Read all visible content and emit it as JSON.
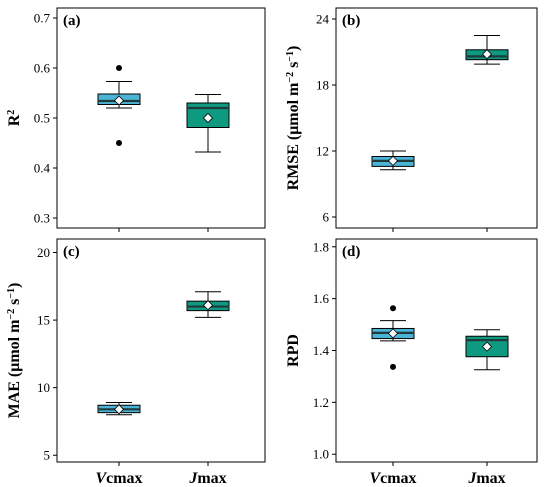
{
  "colors": {
    "vcmax": "#4bb3d6",
    "jmax": "#0e9a80",
    "median": "#1f3b3a",
    "frame": "#000000"
  },
  "x_categories": [
    {
      "italic": "V",
      "rest": "cmax"
    },
    {
      "italic": "J",
      "rest": "max"
    }
  ],
  "chart_data": [
    {
      "type": "box",
      "label": "(a)",
      "ylabel": "R",
      "ylabel_sup": "2",
      "ylim": [
        0.28,
        0.72
      ],
      "yticks": [
        "0.3",
        "0.4",
        "0.5",
        "0.6",
        "0.7"
      ],
      "categories": [
        "Vcmax",
        "Jmax"
      ],
      "boxes": [
        {
          "whisker_low": 0.52,
          "q1": 0.527,
          "median": 0.534,
          "q3": 0.548,
          "whisker_high": 0.573,
          "mean": 0.535,
          "outliers": [
            0.6,
            0.45
          ]
        },
        {
          "whisker_low": 0.432,
          "q1": 0.481,
          "median": 0.52,
          "q3": 0.53,
          "whisker_high": 0.547,
          "mean": 0.5,
          "outliers": []
        }
      ]
    },
    {
      "type": "box",
      "label": "(b)",
      "ylabel": "RMSE (μmol m",
      "ylabel_sup": "−2",
      "ylabel_mid": " s",
      "ylabel_sup2": "−1",
      "ylabel_end": ")",
      "ylim": [
        5,
        25
      ],
      "yticks": [
        "6",
        "12",
        "18",
        "24"
      ],
      "categories": [
        "Vcmax",
        "Jmax"
      ],
      "boxes": [
        {
          "whisker_low": 10.3,
          "q1": 10.6,
          "median": 11.1,
          "q3": 11.5,
          "whisker_high": 12.0,
          "mean": 11.1,
          "outliers": []
        },
        {
          "whisker_low": 19.9,
          "q1": 20.3,
          "median": 20.6,
          "q3": 21.2,
          "whisker_high": 22.5,
          "mean": 20.8,
          "outliers": []
        }
      ]
    },
    {
      "type": "box",
      "label": "(c)",
      "ylabel": "MAE (μmol m",
      "ylabel_sup": "−2",
      "ylabel_mid": " s",
      "ylabel_sup2": "−1",
      "ylabel_end": ")",
      "ylim": [
        4.5,
        21
      ],
      "yticks": [
        "5",
        "10",
        "15",
        "20"
      ],
      "categories": [
        "Vcmax",
        "Jmax"
      ],
      "boxes": [
        {
          "whisker_low": 8.0,
          "q1": 8.15,
          "median": 8.4,
          "q3": 8.7,
          "whisker_high": 8.9,
          "mean": 8.4,
          "outliers": []
        },
        {
          "whisker_low": 15.2,
          "q1": 15.7,
          "median": 16.0,
          "q3": 16.4,
          "whisker_high": 17.1,
          "mean": 16.1,
          "outliers": []
        }
      ]
    },
    {
      "type": "box",
      "label": "(d)",
      "ylabel": "RPD",
      "ylim": [
        0.97,
        1.83
      ],
      "yticks": [
        "1.0",
        "1.2",
        "1.4",
        "1.6",
        "1.8"
      ],
      "categories": [
        "Vcmax",
        "Jmax"
      ],
      "boxes": [
        {
          "whisker_low": 1.437,
          "q1": 1.446,
          "median": 1.468,
          "q3": 1.485,
          "whisker_high": 1.515,
          "mean": 1.466,
          "outliers": [
            1.563,
            1.337
          ]
        },
        {
          "whisker_low": 1.326,
          "q1": 1.376,
          "median": 1.44,
          "q3": 1.455,
          "whisker_high": 1.48,
          "mean": 1.415,
          "outliers": []
        }
      ]
    }
  ]
}
